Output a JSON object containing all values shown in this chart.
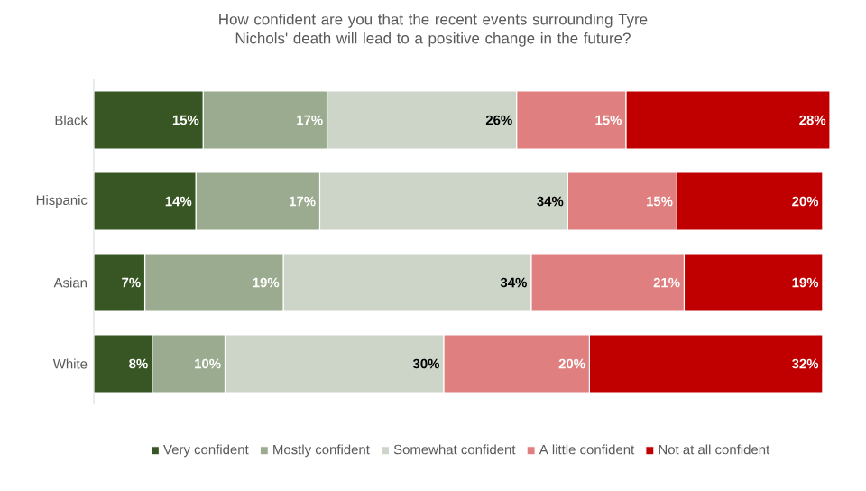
{
  "chart_data": {
    "type": "bar",
    "orientation": "horizontal",
    "stacked": true,
    "legend": "bottom",
    "title": "How confident are you that the recent events surrounding Tyre Nichols' death will lead to a positive change in the future?",
    "categories": [
      "Black",
      "Hispanic",
      "Asian",
      "White"
    ],
    "series": [
      {
        "name": "Very confident",
        "color": "#375623",
        "values": [
          15,
          14,
          7,
          8
        ],
        "value_labels": [
          "15%",
          "14%",
          "7%",
          "8%"
        ]
      },
      {
        "name": "Mostly confident",
        "color": "#9aab8f",
        "values": [
          17,
          17,
          19,
          10
        ],
        "value_labels": [
          "17%",
          "17%",
          "19%",
          "10%"
        ]
      },
      {
        "name": "Somewhat confident",
        "color": "#ccd5c8",
        "values": [
          26,
          34,
          34,
          30
        ],
        "value_labels": [
          "26%",
          "34%",
          "34%",
          "30%"
        ]
      },
      {
        "name": "A little confident",
        "color": "#e07f7f",
        "values": [
          15,
          15,
          21,
          20
        ],
        "value_labels": [
          "15%",
          "15%",
          "21%",
          "20%"
        ]
      },
      {
        "name": "Not at all confident",
        "color": "#c00000",
        "values": [
          28,
          20,
          19,
          32
        ],
        "value_labels": [
          "28%",
          "20%",
          "19%",
          "32%"
        ]
      }
    ]
  }
}
